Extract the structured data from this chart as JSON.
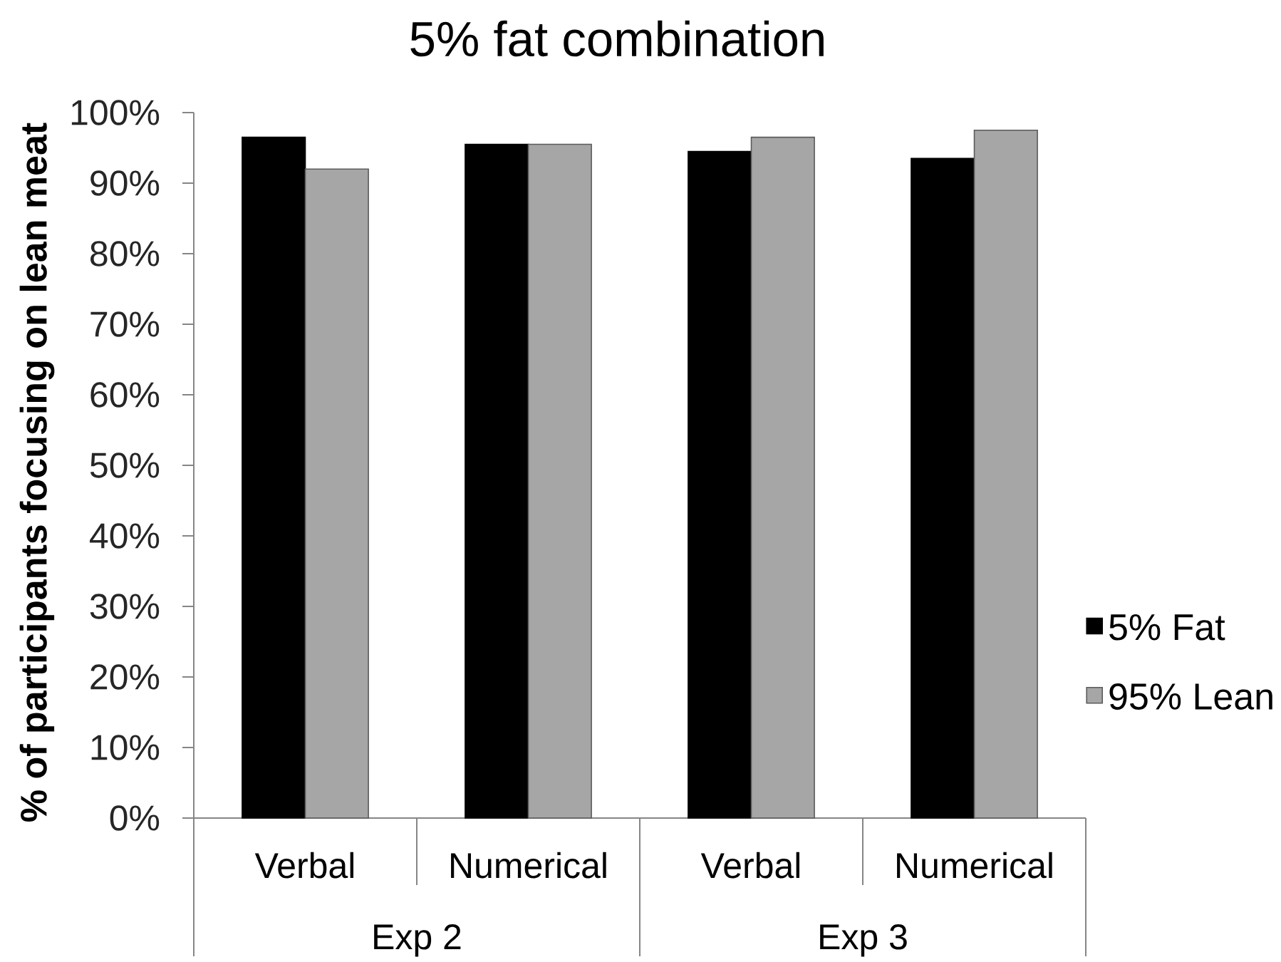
{
  "chart_data": {
    "type": "bar",
    "title": "5% fat combination",
    "ylabel": "% of participants focusing on lean meat",
    "categories": [
      "Verbal",
      "Numerical",
      "Verbal",
      "Numerical"
    ],
    "annotations": [
      "Exp 2",
      "Exp 3"
    ],
    "series": [
      {
        "name": "5% Fat",
        "color": "#000000",
        "values": [
          96.5,
          95.5,
          94.5,
          93.5
        ]
      },
      {
        "name": "95% Lean",
        "color": "#a6a6a6",
        "values": [
          92,
          95.5,
          96.5,
          97.5
        ]
      }
    ],
    "ylim": [
      0,
      100
    ],
    "yticks": [
      {
        "value": 0,
        "label": "0%"
      },
      {
        "value": 10,
        "label": "10%"
      },
      {
        "value": 20,
        "label": "20%"
      },
      {
        "value": 30,
        "label": "30%"
      },
      {
        "value": 40,
        "label": "40%"
      },
      {
        "value": 50,
        "label": "50%"
      },
      {
        "value": 60,
        "label": "60%"
      },
      {
        "value": 70,
        "label": "70%"
      },
      {
        "value": 80,
        "label": "80%"
      },
      {
        "value": 90,
        "label": "90%"
      },
      {
        "value": 100,
        "label": "100%"
      }
    ],
    "legend": "right",
    "grid": false
  }
}
